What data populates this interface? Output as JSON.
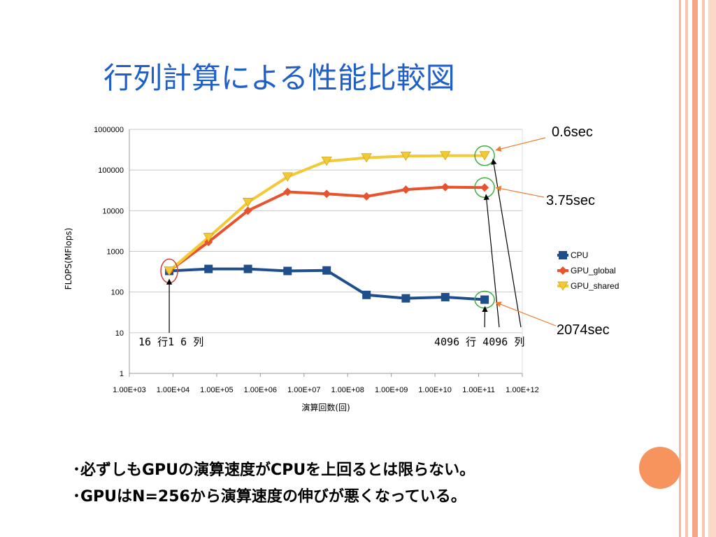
{
  "slide": {
    "title": "行列計算による性能比較図",
    "bullets": [
      "･必ずしもGPUの演算速度がCPUを上回るとは限らない。",
      "･GPUはN=256から演算速度の伸びが悪くなっている。"
    ]
  },
  "colors": {
    "cpu": "#1f4e8c",
    "gpu_global": "#e8522c",
    "gpu_shared": "#f2c936",
    "title": "#1f5fc8",
    "accent": "#f7935c",
    "annotation_line": "#f07a2e"
  },
  "chart_data": {
    "type": "line",
    "title": "",
    "xlabel": "演算回数(回)",
    "ylabel": "FLOPS(MFlops)",
    "x_scale": "log",
    "y_scale": "log",
    "xlim": [
      1000,
      1000000000000
    ],
    "ylim": [
      1,
      1000000
    ],
    "x_ticks": [
      "1.00E+03",
      "1.00E+04",
      "1.00E+05",
      "1.00E+06",
      "1.00E+07",
      "1.00E+08",
      "1.00E+09",
      "1.00E+10",
      "1.00E+11",
      "1.00E+12"
    ],
    "y_ticks": [
      "1",
      "10",
      "100",
      "1000",
      "10000",
      "100000",
      "1000000"
    ],
    "grid": "horizontal",
    "legend_position": "right",
    "series": [
      {
        "name": "CPU",
        "marker": "square",
        "x": [
          8200,
          65000,
          520000,
          4200000,
          33000000,
          270000000,
          2150000000,
          17200000000,
          137000000000
        ],
        "y": [
          330,
          370,
          370,
          330,
          340,
          85,
          70,
          75,
          65
        ]
      },
      {
        "name": "GPU_global",
        "marker": "diamond",
        "x": [
          8200,
          65000,
          520000,
          4200000,
          33000000,
          270000000,
          2150000000,
          17200000000,
          137000000000
        ],
        "y": [
          330,
          1700,
          10000,
          29000,
          26000,
          22500,
          33000,
          38000,
          37000
        ]
      },
      {
        "name": "GPU_shared",
        "marker": "triangle-down",
        "x": [
          8200,
          65000,
          520000,
          4200000,
          33000000,
          270000000,
          2150000000,
          17200000000,
          137000000000
        ],
        "y": [
          330,
          2200,
          16000,
          68000,
          165000,
          200000,
          220000,
          225000,
          225000
        ]
      }
    ],
    "annotations": {
      "start_label": "16 行1 6 列",
      "end_label": "4096 行 4096 列",
      "time_shared": "0.6sec",
      "time_global": "3.75sec",
      "time_cpu": "2074sec"
    }
  }
}
